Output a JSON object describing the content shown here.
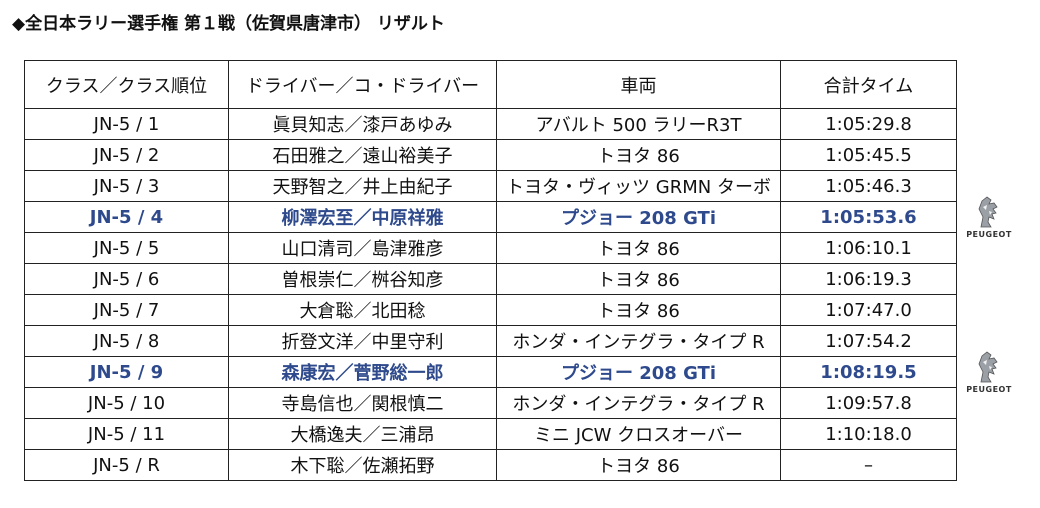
{
  "page": {
    "title": "◆全日本ラリー選手権 第１戦（佐賀県唐津市） リザルト"
  },
  "table": {
    "headers": [
      "クラス／クラス順位",
      "ドライバー／コ・ドライバー",
      "車両",
      "合計タイム"
    ],
    "rows": [
      {
        "class": "JN-5 / 1",
        "driver": "眞貝知志／漆戸あゆみ",
        "car": "アバルト 500 ラリーR3T",
        "time": "1:05:29.8",
        "highlight": false
      },
      {
        "class": "JN-5 / 2",
        "driver": "石田雅之／遠山裕美子",
        "car": "トヨタ 86",
        "time": "1:05:45.5",
        "highlight": false
      },
      {
        "class": "JN-5 / 3",
        "driver": "天野智之／井上由紀子",
        "car": "トヨタ・ヴィッツ GRMN ターボ",
        "time": "1:05:46.3",
        "highlight": false
      },
      {
        "class": "JN-5 / 4",
        "driver": "柳澤宏至／中原祥雅",
        "car": "プジョー 208 GTi",
        "time": "1:05:53.6",
        "highlight": true
      },
      {
        "class": "JN-5 / 5",
        "driver": "山口清司／島津雅彦",
        "car": "トヨタ 86",
        "time": "1:06:10.1",
        "highlight": false
      },
      {
        "class": "JN-5 / 6",
        "driver": "曽根崇仁／桝谷知彦",
        "car": "トヨタ 86",
        "time": "1:06:19.3",
        "highlight": false
      },
      {
        "class": "JN-5 / 7",
        "driver": "大倉聡／北田稔",
        "car": "トヨタ 86",
        "time": "1:07:47.0",
        "highlight": false
      },
      {
        "class": "JN-5 / 8",
        "driver": "折登文洋／中里守利",
        "car": "ホンダ・インテグラ・タイプ R",
        "time": "1:07:54.2",
        "highlight": false
      },
      {
        "class": "JN-5 / 9",
        "driver": "森康宏／菅野総一郎",
        "car": "プジョー 208 GTi",
        "time": "1:08:19.5",
        "highlight": true
      },
      {
        "class": "JN-5 / 10",
        "driver": "寺島信也／関根慎二",
        "car": "ホンダ・インテグラ・タイプ R",
        "time": "1:09:57.8",
        "highlight": false
      },
      {
        "class": "JN-5 / 11",
        "driver": "大橋逸夫／三浦昂",
        "car": "ミニ JCW クロスオーバー",
        "time": "1:10:18.0",
        "highlight": false
      },
      {
        "class": "JN-5 / R",
        "driver": "木下聡／佐瀬拓野",
        "car": "トヨタ 86",
        "time": "–",
        "highlight": false
      }
    ]
  },
  "logos": [
    {
      "icon": "peugeot-lion-icon",
      "brand": "PEUGEOT",
      "row_index": 3
    },
    {
      "icon": "peugeot-lion-icon",
      "brand": "PEUGEOT",
      "row_index": 8
    }
  ],
  "colors": {
    "highlight_text": "#2e4a8c",
    "border": "#222222"
  }
}
